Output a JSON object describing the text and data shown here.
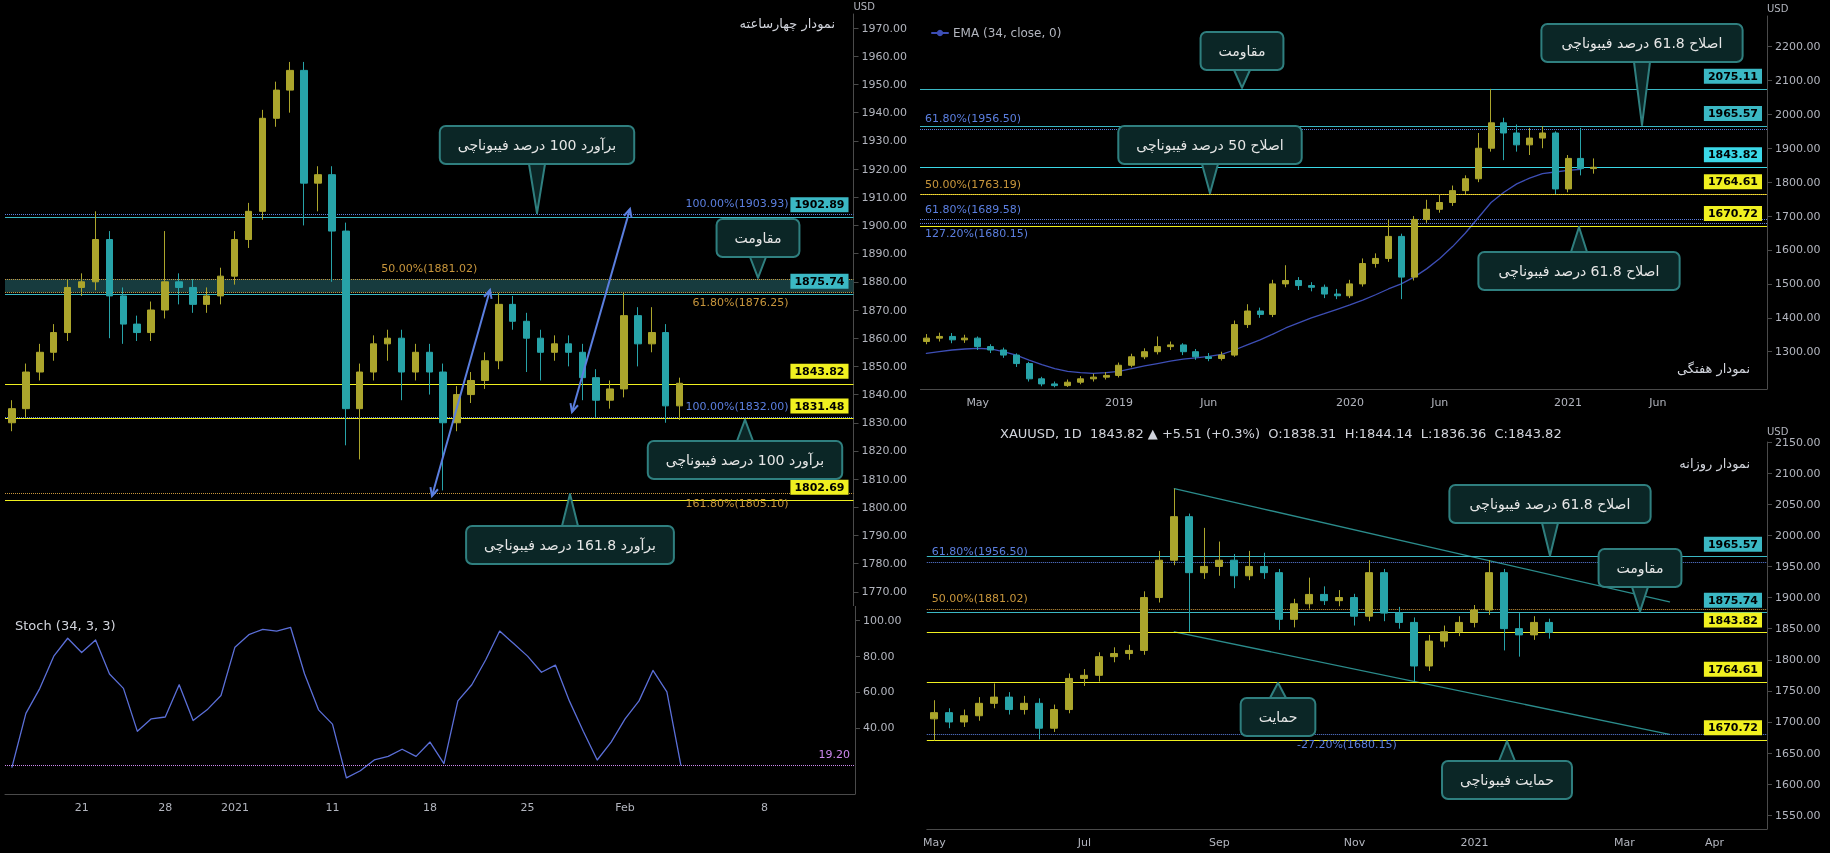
{
  "chart_data": [
    {
      "type": "candlestick",
      "title": "نمودار چهارساعته",
      "ylabel": "USD",
      "tick_labels": "y",
      "categories": [
        null,
        null,
        null,
        null,
        null,
        null,
        null,
        null,
        null,
        null,
        null,
        null,
        null,
        null,
        null,
        null,
        null,
        null,
        null,
        null,
        null,
        null,
        null,
        null,
        null,
        null,
        null,
        null,
        null,
        null,
        null,
        null,
        null,
        null,
        null,
        null,
        null,
        null,
        null,
        null,
        null,
        null,
        null,
        null,
        null,
        null,
        null,
        null,
        null,
        null,
        null,
        null,
        null,
        null,
        null,
        null,
        null,
        null,
        null,
        null,
        null
      ],
      "series": [
        {
          "colors": [
            "#aba52c",
            "#aba52c",
            "#aba52c",
            "#aba52c",
            "#aba52c",
            "#aba52c",
            "#aba52c",
            "#27a3a8",
            "#27a3a8",
            "#27a3a8",
            "#aba52c",
            "#aba52c",
            "#27a3a8",
            "#27a3a8",
            "#aba52c",
            "#aba52c",
            "#aba52c",
            "#aba52c",
            "#aba52c",
            "#aba52c",
            "#aba52c",
            "#27a3a8",
            "#aba52c",
            "#27a3a8",
            "#27a3a8",
            "#aba52c",
            "#aba52c",
            "#aba52c",
            "#27a3a8",
            "#aba52c",
            "#27a3a8",
            "#27a3a8",
            "#aba52c",
            "#aba52c",
            "#aba52c",
            "#aba52c",
            "#27a3a8",
            "#27a3a8",
            "#27a3a8",
            "#aba52c",
            "#27a3a8",
            "#27a3a8",
            "#27a3a8",
            "#aba52c",
            "#aba52c",
            "#27a3a8",
            "#aba52c",
            "#27a3a8",
            "#aba52c",
            null,
            null,
            null,
            null,
            null,
            null,
            null,
            null,
            null,
            null,
            null,
            null
          ],
          "ohlc": [
            [
              1830,
              1838,
              1827,
              1835
            ],
            [
              1835,
              1851,
              1832,
              1848
            ],
            [
              1848,
              1858,
              1845,
              1855
            ],
            [
              1855,
              1865,
              1852,
              1862
            ],
            [
              1862,
              1881,
              1859,
              1878
            ],
            [
              1878,
              1883,
              1875,
              1880
            ],
            [
              1880,
              1905,
              1877,
              1895
            ],
            [
              1895,
              1898,
              1860,
              1875
            ],
            [
              1875,
              1878,
              1858,
              1865
            ],
            [
              1865,
              1868,
              1859,
              1862
            ],
            [
              1862,
              1873,
              1859,
              1870
            ],
            [
              1870,
              1898,
              1867,
              1880
            ],
            [
              1880,
              1883,
              1872,
              1878
            ],
            [
              1878,
              1881,
              1869,
              1872
            ],
            [
              1872,
              1878,
              1869,
              1875
            ],
            [
              1875,
              1885,
              1872,
              1882
            ],
            [
              1882,
              1898,
              1879,
              1895
            ],
            [
              1895,
              1908,
              1892,
              1905
            ],
            [
              1905,
              1941,
              1902,
              1938
            ],
            [
              1938,
              1951,
              1935,
              1948
            ],
            [
              1948,
              1958,
              1940,
              1955
            ],
            [
              1955,
              1958,
              1900,
              1915
            ],
            [
              1915,
              1921,
              1905,
              1918
            ],
            [
              1918,
              1921,
              1880,
              1898
            ],
            [
              1898,
              1901,
              1822,
              1835
            ],
            [
              1835,
              1851,
              1817,
              1848
            ],
            [
              1848,
              1861,
              1845,
              1858
            ],
            [
              1858,
              1863,
              1852,
              1860
            ],
            [
              1860,
              1863,
              1838,
              1848
            ],
            [
              1848,
              1858,
              1845,
              1855
            ],
            [
              1855,
              1858,
              1840,
              1848
            ],
            [
              1848,
              1851,
              1806,
              1830
            ],
            [
              1830,
              1843,
              1827,
              1840
            ],
            [
              1840,
              1848,
              1837,
              1845
            ],
            [
              1845,
              1855,
              1842,
              1852
            ],
            [
              1852,
              1876,
              1849,
              1872
            ],
            [
              1872,
              1875,
              1863,
              1866
            ],
            [
              1866,
              1869,
              1848,
              1860
            ],
            [
              1860,
              1863,
              1845,
              1855
            ],
            [
              1855,
              1861,
              1852,
              1858
            ],
            [
              1858,
              1861,
              1850,
              1855
            ],
            [
              1855,
              1858,
              1838,
              1846
            ],
            [
              1846,
              1849,
              1832,
              1838
            ],
            [
              1838,
              1845,
              1835,
              1842
            ],
            [
              1842,
              1876,
              1839,
              1868
            ],
            [
              1868,
              1871,
              1850,
              1858
            ],
            [
              1858,
              1871,
              1855,
              1862
            ],
            [
              1862,
              1865,
              1830,
              1836
            ],
            [
              1836,
              1846,
              1831,
              1844
            ],
            null,
            null,
            null,
            null,
            null,
            null,
            null,
            null,
            null,
            null,
            null,
            null
          ]
        }
      ],
      "ylim": [
        1765,
        1975
      ],
      "yticks": [
        {
          "value": 1770,
          "label": "1770.00"
        },
        {
          "value": 1780,
          "label": "1780.00"
        },
        {
          "value": 1790,
          "label": "1790.00"
        },
        {
          "value": 1800,
          "label": "1800.00"
        },
        {
          "value": 1810,
          "label": "1810.00"
        },
        {
          "value": 1820,
          "label": "1820.00"
        },
        {
          "value": 1830,
          "label": "1830.00"
        },
        {
          "value": 1840,
          "label": "1840.00"
        },
        {
          "value": 1850,
          "label": "1850.00"
        },
        {
          "value": 1860,
          "label": "1860.00"
        },
        {
          "value": 1870,
          "label": "1870.00"
        },
        {
          "value": 1880,
          "label": "1880.00"
        },
        {
          "value": 1890,
          "label": "1890.00"
        },
        {
          "value": 1900,
          "label": "1900.00"
        },
        {
          "value": 1910,
          "label": "1910.00"
        },
        {
          "value": 1920,
          "label": "1920.00"
        },
        {
          "value": 1930,
          "label": "1930.00"
        },
        {
          "value": 1940,
          "label": "1940.00"
        },
        {
          "value": 1950,
          "label": "1950.00"
        },
        {
          "value": 1960,
          "label": "1960.00"
        },
        {
          "value": 1970,
          "label": "1970.00"
        }
      ],
      "ref_lines": [
        {
          "axis": "y",
          "value": 1903.93,
          "label": "100.00%(1903.93)",
          "color": "#5b7fe0",
          "line_style": "dotted"
        },
        {
          "axis": "y",
          "value": 1881.02,
          "label": "50.00%(1881.02)",
          "color": "#c8963c",
          "line_style": "dotted"
        },
        {
          "axis": "y",
          "value": 1876.25,
          "label": "61.80%(1876.25)",
          "color": "#c8963c",
          "line_style": "dotted"
        },
        {
          "axis": "y",
          "value": 1832.0,
          "label": "100.00%(1832.00)",
          "color": "#5b7fe0",
          "line_style": "dotted"
        },
        {
          "axis": "y",
          "value": 1805.1,
          "label": "161.80%(1805.10)",
          "color": "#c8963c",
          "line_style": "dotted"
        },
        {
          "axis": "y",
          "value": 1902.89,
          "label": "1902.89",
          "color": "#3bb8c4"
        },
        {
          "axis": "y",
          "value": 1875.74,
          "label": "1875.74",
          "color": "#3bb8c4"
        },
        {
          "axis": "y",
          "value": 1843.82,
          "label": "1843.82",
          "color": "#f0f020"
        },
        {
          "axis": "y",
          "value": 1831.48,
          "label": "1831.48",
          "color": "#f0f020"
        },
        {
          "axis": "y",
          "value": 1802.69,
          "label": "1802.69",
          "color": "#f0f020"
        }
      ],
      "bands": [
        {
          "axis": "y",
          "from": 1876.25,
          "to": 1881.02,
          "color": "#1d4a4e"
        }
      ],
      "annotations": [
        {
          "text": "برآورد 100 درصد فیبوناچی",
          "y": 1903.93
        },
        {
          "text": "مقاومت",
          "y": 1881.02
        },
        {
          "text": "برآورد 100 درصد فیبوناچی",
          "y": 1831.48
        },
        {
          "text": "برآورد 161.8 درصد فیبوناچی",
          "y": 1805.1
        }
      ]
    },
    {
      "type": "line",
      "title": "Stoch (34, 3, 3)",
      "marker": "none",
      "categories": [
        null,
        null,
        null,
        null,
        null,
        "21",
        null,
        null,
        null,
        null,
        null,
        "28",
        null,
        null,
        null,
        null,
        "2021",
        null,
        null,
        null,
        null,
        null,
        null,
        "11",
        null,
        null,
        null,
        null,
        null,
        null,
        "18",
        null,
        null,
        null,
        null,
        null,
        null,
        "25",
        null,
        null,
        null,
        null,
        null,
        null,
        "Feb",
        null,
        null,
        null,
        null,
        null,
        null,
        null,
        null,
        null,
        "8",
        null,
        null,
        null,
        null,
        null,
        null
      ],
      "series": [
        {
          "color": "#5b6fd8",
          "values": [
            18,
            48,
            62,
            80,
            90,
            82,
            89,
            70,
            62,
            38,
            45,
            46,
            64,
            44,
            50,
            58,
            85,
            92,
            95,
            94,
            96,
            70,
            50,
            42,
            12,
            16,
            22,
            24,
            28,
            24,
            32,
            20,
            55,
            64,
            78,
            94,
            87,
            80,
            71,
            75,
            55,
            38,
            22,
            32,
            45,
            55,
            72,
            60,
            19.2,
            null,
            null,
            null,
            null,
            null,
            null,
            null,
            null,
            null,
            null,
            null,
            null
          ]
        }
      ],
      "ylim": [
        3,
        108
      ],
      "yticks": [
        {
          "value": 40,
          "label": "40.00"
        },
        {
          "value": 60,
          "label": "60.00"
        },
        {
          "value": 80,
          "label": "80.00"
        },
        {
          "value": 100,
          "label": "100.00"
        }
      ],
      "ref_lines": [
        {
          "axis": "y",
          "value": 19.2,
          "label": "19.20",
          "color": "#cc88ee",
          "line_style": "dotted"
        }
      ]
    },
    {
      "type": "candlestick",
      "title": "نمودار هفتگی",
      "ylabel": "USD",
      "legend": "top left",
      "marker": "none",
      "categories": [
        null,
        null,
        null,
        null,
        "May",
        null,
        null,
        null,
        null,
        null,
        null,
        null,
        null,
        null,
        null,
        "2019",
        null,
        null,
        null,
        null,
        null,
        null,
        "Jun",
        null,
        null,
        null,
        null,
        null,
        null,
        null,
        null,
        null,
        null,
        "2020",
        null,
        null,
        null,
        null,
        null,
        null,
        "Jun",
        null,
        null,
        null,
        null,
        null,
        null,
        null,
        null,
        null,
        "2021",
        null,
        null,
        null,
        null,
        null,
        null,
        "Jun",
        null,
        null,
        null,
        null,
        null,
        null,
        null,
        null
      ],
      "series": [
        {
          "colors": [
            "#aba52c",
            "#aba52c",
            "#27a3a8",
            "#aba52c",
            "#27a3a8",
            "#27a3a8",
            "#27a3a8",
            "#27a3a8",
            "#27a3a8",
            "#27a3a8",
            "#27a3a8",
            "#aba52c",
            "#aba52c",
            "#aba52c",
            "#aba52c",
            "#aba52c",
            "#aba52c",
            "#aba52c",
            "#aba52c",
            "#aba52c",
            "#27a3a8",
            "#27a3a8",
            "#27a3a8",
            "#aba52c",
            "#aba52c",
            "#aba52c",
            "#27a3a8",
            "#aba52c",
            "#aba52c",
            "#27a3a8",
            "#27a3a8",
            "#27a3a8",
            "#27a3a8",
            "#aba52c",
            "#aba52c",
            "#aba52c",
            "#aba52c",
            "#27a3a8",
            "#aba52c",
            "#aba52c",
            "#aba52c",
            "#aba52c",
            "#aba52c",
            "#aba52c",
            "#aba52c",
            "#27a3a8",
            "#27a3a8",
            "#aba52c",
            "#aba52c",
            "#27a3a8",
            "#aba52c",
            "#27a3a8",
            "#aba52c",
            null,
            null,
            null,
            null,
            null,
            null,
            null,
            null,
            null,
            null,
            null,
            null,
            null
          ],
          "ohlc": [
            [
              1330,
              1352,
              1322,
              1340
            ],
            [
              1340,
              1356,
              1330,
              1345
            ],
            [
              1345,
              1355,
              1325,
              1335
            ],
            [
              1335,
              1350,
              1326,
              1340
            ],
            [
              1340,
              1345,
              1305,
              1315
            ],
            [
              1315,
              1322,
              1296,
              1305
            ],
            [
              1305,
              1312,
              1282,
              1290
            ],
            [
              1290,
              1295,
              1255,
              1265
            ],
            [
              1265,
              1270,
              1212,
              1220
            ],
            [
              1220,
              1226,
              1198,
              1205
            ],
            [
              1205,
              1212,
              1195,
              1200
            ],
            [
              1200,
              1218,
              1196,
              1210
            ],
            [
              1210,
              1228,
              1204,
              1220
            ],
            [
              1220,
              1235,
              1212,
              1225
            ],
            [
              1225,
              1240,
              1218,
              1230
            ],
            [
              1230,
              1268,
              1224,
              1260
            ],
            [
              1260,
              1294,
              1254,
              1285
            ],
            [
              1285,
              1310,
              1278,
              1300
            ],
            [
              1300,
              1345,
              1292,
              1315
            ],
            [
              1315,
              1330,
              1305,
              1320
            ],
            [
              1320,
              1325,
              1290,
              1300
            ],
            [
              1300,
              1308,
              1276,
              1285
            ],
            [
              1285,
              1296,
              1272,
              1280
            ],
            [
              1280,
              1300,
              1274,
              1290
            ],
            [
              1290,
              1392,
              1285,
              1380
            ],
            [
              1380,
              1440,
              1370,
              1420
            ],
            [
              1420,
              1430,
              1400,
              1410
            ],
            [
              1410,
              1512,
              1402,
              1500
            ],
            [
              1500,
              1555,
              1490,
              1510
            ],
            [
              1510,
              1520,
              1482,
              1495
            ],
            [
              1495,
              1505,
              1478,
              1490
            ],
            [
              1490,
              1498,
              1458,
              1470
            ],
            [
              1470,
              1485,
              1455,
              1465
            ],
            [
              1465,
              1512,
              1458,
              1500
            ],
            [
              1500,
              1575,
              1492,
              1560
            ],
            [
              1560,
              1590,
              1548,
              1575
            ],
            [
              1575,
              1690,
              1565,
              1640
            ],
            [
              1640,
              1648,
              1455,
              1520
            ],
            [
              1520,
              1700,
              1510,
              1690
            ],
            [
              1690,
              1748,
              1680,
              1720
            ],
            [
              1720,
              1765,
              1710,
              1740
            ],
            [
              1740,
              1790,
              1730,
              1775
            ],
            [
              1775,
              1820,
              1765,
              1810
            ],
            [
              1810,
              1945,
              1800,
              1900
            ],
            [
              1900,
              2075,
              1890,
              1975
            ],
            [
              1975,
              1990,
              1865,
              1945
            ],
            [
              1945,
              1970,
              1890,
              1910
            ],
            [
              1910,
              1960,
              1880,
              1930
            ],
            [
              1930,
              1965,
              1900,
              1945
            ],
            [
              1945,
              1950,
              1765,
              1780
            ],
            [
              1780,
              1880,
              1770,
              1870
            ],
            [
              1870,
              1960,
              1820,
              1840
            ],
            [
              1840,
              1870,
              1825,
              1844
            ],
            null,
            null,
            null,
            null,
            null,
            null,
            null,
            null,
            null,
            null,
            null,
            null,
            null
          ]
        },
        {
          "type": "line",
          "name": "EMA (34, close, 0)",
          "color": "#3d4eb5",
          "values": [
            1295,
            1300,
            1305,
            1308,
            1310,
            1308,
            1300,
            1290,
            1275,
            1262,
            1250,
            1242,
            1238,
            1236,
            1238,
            1242,
            1250,
            1258,
            1265,
            1272,
            1278,
            1282,
            1286,
            1292,
            1305,
            1320,
            1335,
            1352,
            1370,
            1385,
            1400,
            1412,
            1425,
            1438,
            1452,
            1468,
            1485,
            1500,
            1520,
            1545,
            1575,
            1610,
            1650,
            1695,
            1740,
            1770,
            1795,
            1812,
            1825,
            1830,
            1835,
            1838,
            null,
            null,
            null,
            null,
            null,
            null,
            null,
            null,
            null,
            null,
            null,
            null,
            null,
            null
          ]
        }
      ],
      "ylim": [
        1190,
        2290
      ],
      "yticks": [
        {
          "value": 1300,
          "label": "1300.00"
        },
        {
          "value": 1400,
          "label": "1400.00"
        },
        {
          "value": 1500,
          "label": "1500.00"
        },
        {
          "value": 1600,
          "label": "1600.00"
        },
        {
          "value": 1700,
          "label": "1700.00"
        },
        {
          "value": 1800,
          "label": "1800.00"
        },
        {
          "value": 1900,
          "label": "1900.00"
        },
        {
          "value": 2000,
          "label": "2000.00"
        },
        {
          "value": 2100,
          "label": "2100.00"
        },
        {
          "value": 2200,
          "label": "2200.00"
        }
      ],
      "ref_lines": [
        {
          "axis": "y",
          "value": 1956.5,
          "label": "61.80%(1956.50)",
          "color": "#5b7fe0",
          "line_style": "dotted"
        },
        {
          "axis": "y",
          "value": 1763.19,
          "label": "50.00%(1763.19)",
          "color": "#c8963c",
          "line_style": "dotted"
        },
        {
          "axis": "y",
          "value": 1689.58,
          "label": "61.80%(1689.58)",
          "color": "#5b7fe0",
          "line_style": "dotted"
        },
        {
          "axis": "y",
          "value": 1680.15,
          "label": "127.20%(1680.15)",
          "color": "#5b7fe0",
          "line_style": "dotted"
        },
        {
          "axis": "y",
          "value": 2075.11,
          "label": "2075.11",
          "color": "#3bb8c4"
        },
        {
          "axis": "y",
          "value": 1965.57,
          "label": "1965.57",
          "color": "#3bb8c4"
        },
        {
          "axis": "y",
          "value": 1843.82,
          "label": "1843.82",
          "color": "#3bd8e8"
        },
        {
          "axis": "y",
          "value": 1764.61,
          "label": "1764.61",
          "color": "#f0f020"
        },
        {
          "axis": "y",
          "value": 1670.72,
          "label": "1670.72",
          "color": "#f0f020"
        }
      ],
      "annotations": [
        {
          "text": "مقاومت",
          "y": 2075.11
        },
        {
          "text": "اصلاح 50 درصد فیبوناچی",
          "y": 1764.61
        },
        {
          "text": "اصلاح 61.8  درصد فیبوناچی",
          "y": 1965.57
        },
        {
          "text": "اصلاح 61.8  درصد فیبوناچی",
          "y": 1670.72
        }
      ]
    },
    {
      "type": "candlestick",
      "title": "XAUUSD, 1D  1843.82 ▲ +5.51 (+0.3%)  O:1838.31  H:1844.14  L:1836.36  C:1843.82",
      "subtitle": "نمودار روزانه",
      "ylabel": "USD",
      "marker": "none",
      "categories": [
        "May",
        null,
        null,
        null,
        null,
        null,
        null,
        null,
        null,
        null,
        "Jul",
        null,
        null,
        null,
        null,
        null,
        null,
        null,
        null,
        "Sep",
        null,
        null,
        null,
        null,
        null,
        null,
        null,
        null,
        "Nov",
        null,
        null,
        null,
        null,
        null,
        null,
        null,
        "2021",
        null,
        null,
        null,
        null,
        null,
        null,
        null,
        null,
        null,
        "Mar",
        null,
        null,
        null,
        null,
        null,
        "Apr",
        null,
        null,
        null
      ],
      "series": [
        {
          "colors": [
            "#aba52c",
            "#27a3a8",
            "#aba52c",
            "#aba52c",
            "#aba52c",
            "#27a3a8",
            "#aba52c",
            "#27a3a8",
            "#aba52c",
            "#aba52c",
            "#aba52c",
            "#aba52c",
            "#aba52c",
            "#aba52c",
            "#aba52c",
            "#aba52c",
            "#aba52c",
            "#27a3a8",
            "#aba52c",
            "#aba52c",
            "#27a3a8",
            "#aba52c",
            "#27a3a8",
            "#27a3a8",
            "#aba52c",
            "#aba52c",
            "#27a3a8",
            "#aba52c",
            "#27a3a8",
            "#aba52c",
            "#27a3a8",
            "#27a3a8",
            "#27a3a8",
            "#aba52c",
            "#aba52c",
            "#aba52c",
            "#aba52c",
            "#aba52c",
            "#27a3a8",
            "#27a3a8",
            "#aba52c",
            "#27a3a8",
            null,
            null,
            null,
            null,
            null,
            null,
            null,
            null,
            null,
            null,
            null,
            null,
            null,
            null
          ],
          "ohlc": [
            [
              1705,
              1735,
              1670,
              1715
            ],
            [
              1715,
              1722,
              1690,
              1700
            ],
            [
              1700,
              1720,
              1692,
              1710
            ],
            [
              1710,
              1740,
              1702,
              1730
            ],
            [
              1730,
              1762,
              1722,
              1740
            ],
            [
              1740,
              1748,
              1712,
              1720
            ],
            [
              1720,
              1742,
              1712,
              1730
            ],
            [
              1730,
              1738,
              1672,
              1690
            ],
            [
              1690,
              1728,
              1684,
              1720
            ],
            [
              1720,
              1778,
              1714,
              1770
            ],
            [
              1770,
              1785,
              1758,
              1775
            ],
            [
              1775,
              1812,
              1765,
              1805
            ],
            [
              1805,
              1820,
              1796,
              1810
            ],
            [
              1810,
              1824,
              1800,
              1815
            ],
            [
              1815,
              1910,
              1808,
              1900
            ],
            [
              1900,
              1975,
              1892,
              1960
            ],
            [
              1960,
              2075,
              1952,
              2030
            ],
            [
              2030,
              2035,
              1845,
              1940
            ],
            [
              1940,
              2012,
              1930,
              1950
            ],
            [
              1950,
              1990,
              1935,
              1960
            ],
            [
              1960,
              1970,
              1915,
              1935
            ],
            [
              1935,
              1975,
              1928,
              1950
            ],
            [
              1950,
              1972,
              1930,
              1940
            ],
            [
              1940,
              1946,
              1848,
              1865
            ],
            [
              1865,
              1898,
              1852,
              1890
            ],
            [
              1890,
              1932,
              1882,
              1905
            ],
            [
              1905,
              1918,
              1888,
              1895
            ],
            [
              1895,
              1912,
              1886,
              1900
            ],
            [
              1900,
              1906,
              1855,
              1870
            ],
            [
              1870,
              1960,
              1862,
              1940
            ],
            [
              1940,
              1946,
              1862,
              1875
            ],
            [
              1875,
              1885,
              1850,
              1860
            ],
            [
              1860,
              1868,
              1765,
              1790
            ],
            [
              1790,
              1840,
              1782,
              1830
            ],
            [
              1830,
              1855,
              1820,
              1845
            ],
            [
              1845,
              1870,
              1838,
              1860
            ],
            [
              1860,
              1888,
              1852,
              1880
            ],
            [
              1880,
              1960,
              1872,
              1940
            ],
            [
              1940,
              1946,
              1815,
              1850
            ],
            [
              1850,
              1875,
              1805,
              1840
            ],
            [
              1840,
              1870,
              1832,
              1860
            ],
            [
              1860,
              1866,
              1834,
              1844
            ],
            null,
            null,
            null,
            null,
            null,
            null,
            null,
            null,
            null,
            null,
            null,
            null,
            null,
            null
          ]
        },
        {
          "type": "line",
          "color": "#2b8c8c",
          "values": [
            null,
            null,
            null,
            null,
            null,
            null,
            null,
            null,
            null,
            null,
            null,
            null,
            null,
            null,
            null,
            null,
            2075,
            null,
            null,
            null,
            null,
            null,
            null,
            null,
            null,
            null,
            null,
            null,
            null,
            null,
            null,
            null,
            null,
            null,
            null,
            null,
            null,
            null,
            null,
            null,
            null,
            null,
            null,
            null,
            null,
            null,
            null,
            null,
            null,
            1893,
            null,
            null,
            null,
            null,
            null,
            null
          ]
        },
        {
          "type": "line",
          "color": "#2b8c8c",
          "values": [
            null,
            null,
            null,
            null,
            null,
            null,
            null,
            null,
            null,
            null,
            null,
            null,
            null,
            null,
            null,
            null,
            1845,
            null,
            null,
            null,
            null,
            null,
            null,
            null,
            null,
            null,
            null,
            null,
            null,
            null,
            null,
            null,
            null,
            null,
            null,
            null,
            null,
            null,
            null,
            null,
            null,
            null,
            null,
            null,
            null,
            null,
            null,
            null,
            null,
            1680,
            null,
            null,
            null,
            null,
            null,
            null
          ]
        }
      ],
      "ylim": [
        1528,
        2150
      ],
      "yticks": [
        {
          "value": 1550,
          "label": "1550.00"
        },
        {
          "value": 1600,
          "label": "1600.00"
        },
        {
          "value": 1650,
          "label": "1650.00"
        },
        {
          "value": 1700,
          "label": "1700.00"
        },
        {
          "value": 1750,
          "label": "1750.00"
        },
        {
          "value": 1800,
          "label": "1800.00"
        },
        {
          "value": 1850,
          "label": "1850.00"
        },
        {
          "value": 1900,
          "label": "1900.00"
        },
        {
          "value": 1950,
          "label": "1950.00"
        },
        {
          "value": 2000,
          "label": "2000.00"
        },
        {
          "value": 2050,
          "label": "2050.00"
        },
        {
          "value": 2100,
          "label": "2100.00"
        },
        {
          "value": 2150,
          "label": "2150.00"
        }
      ],
      "ref_lines": [
        {
          "axis": "y",
          "value": 1956.5,
          "label": "61.80%(1956.50)",
          "color": "#5b7fe0",
          "line_style": "dotted"
        },
        {
          "axis": "y",
          "value": 1881.02,
          "label": "50.00%(1881.02)",
          "color": "#c8963c",
          "line_style": "dotted"
        },
        {
          "axis": "y",
          "value": 1680.15,
          "label": "-27.20%(1680.15)",
          "color": "#5b7fe0",
          "line_style": "dotted"
        },
        {
          "axis": "y",
          "value": 1965.57,
          "label": "1965.57",
          "color": "#3bb8c4"
        },
        {
          "axis": "y",
          "value": 1875.74,
          "label": "1875.74",
          "color": "#3bb8c4"
        },
        {
          "axis": "y",
          "value": 1843.82,
          "label": "1843.82",
          "color": "#f0f020"
        },
        {
          "axis": "y",
          "value": 1764.61,
          "label": "1764.61",
          "color": "#f0f020"
        },
        {
          "axis": "y",
          "value": 1670.72,
          "label": "1670.72",
          "color": "#f0f020"
        }
      ],
      "annotations": [
        {
          "text": "اصلاح 61.8  درصد فیبوناچی",
          "y": 1965.57
        },
        {
          "text": "مقاومت",
          "y": 1875.74
        },
        {
          "text": "حمایت",
          "y": 1764.61
        },
        {
          "text": "حمایت فیبوناچی",
          "y": 1670.72
        }
      ]
    }
  ]
}
